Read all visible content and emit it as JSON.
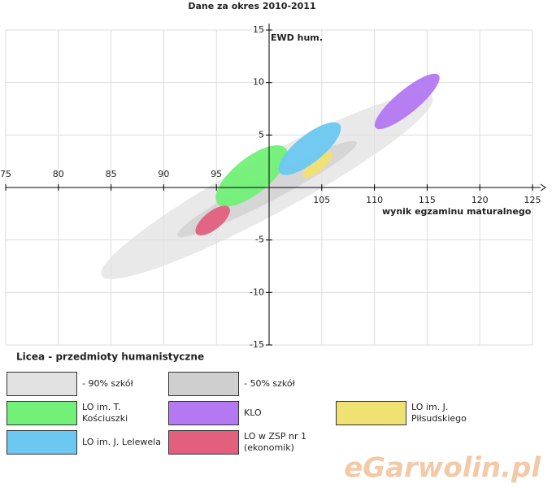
{
  "chart_data": {
    "type": "ellipse",
    "title": "Dane za okres 2010-2011",
    "x_label": "wynik egzaminu maturalnego",
    "y_label": "EWD hum.",
    "legend_title": "Licea - przedmioty humanistyczne",
    "watermark": "eGarwolin.pl",
    "xlim": [
      75,
      125
    ],
    "ylim": [
      -15,
      15
    ],
    "xticks": [
      75,
      80,
      85,
      90,
      95,
      105,
      110,
      115,
      120,
      125
    ],
    "yticks": [
      -15,
      -10,
      -5,
      5,
      10,
      15
    ],
    "grid": true,
    "series": [
      {
        "name": "- 90% szkół",
        "color": "#e2e2e2",
        "x": [
          84.1,
          115.5
        ],
        "y": [
          -8.4,
          8.6
        ],
        "width": 2.7
      },
      {
        "name": "- 50% szkół",
        "color": "#cfcfcf",
        "x": [
          91.3,
          108.3
        ],
        "y": [
          -4.6,
          4.3
        ],
        "width": 1.2
      },
      {
        "name": "LO im. T. Kościuszki",
        "color": "#72f078",
        "x": [
          95.1,
          101.6
        ],
        "y": [
          -1.5,
          3.7
        ],
        "width": 1.7
      },
      {
        "name": "KLO",
        "color": "#b478f2",
        "x": [
          110.1,
          116.1
        ],
        "y": [
          5.7,
          10.7
        ],
        "width": 1.1
      },
      {
        "name": "LO im. J. Piłsudskiego",
        "color": "#f0e272",
        "x": [
          103.2,
          106.0
        ],
        "y": [
          1.0,
          3.3
        ],
        "width": 0.6
      },
      {
        "name": "LO im. J. Lelewela",
        "color": "#6cc8f0",
        "x": [
          101.0,
          106.7
        ],
        "y": [
          1.4,
          6.0
        ],
        "width": 1.3
      },
      {
        "name": "LO w ZSP nr 1 (ekonomik)",
        "color": "#e2607e",
        "x": [
          93.1,
          96.2
        ],
        "y": [
          -4.4,
          -1.9
        ],
        "width": 0.85
      }
    ]
  }
}
